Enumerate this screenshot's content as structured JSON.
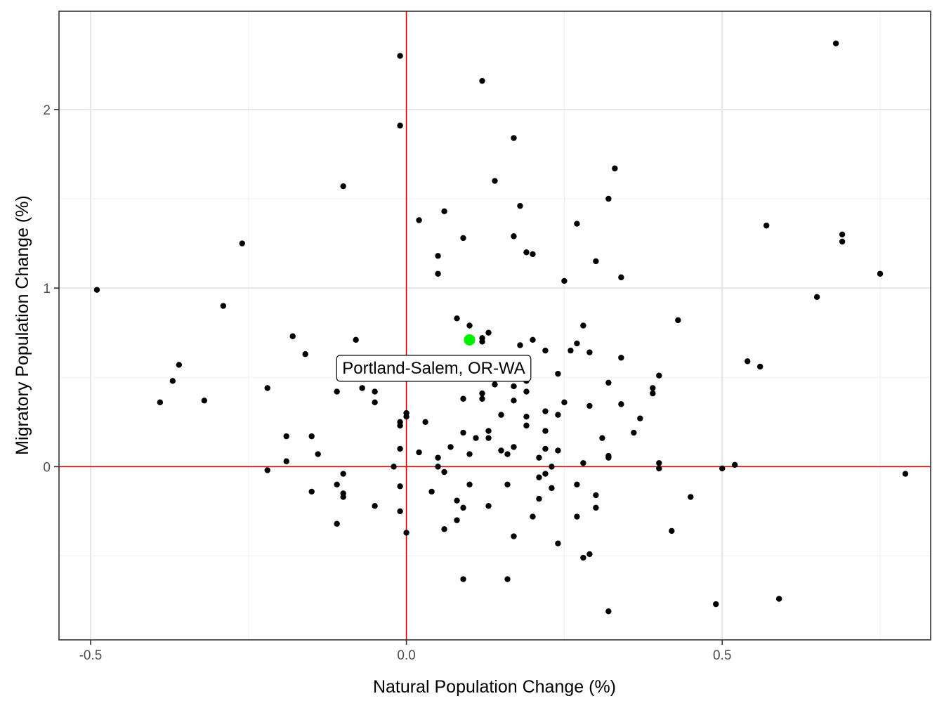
{
  "chart_data": {
    "type": "scatter",
    "title": "",
    "xlabel": "Natural Population Change (%)",
    "ylabel": "Migratory Population Change (%)",
    "xlim": [
      -0.55,
      0.83
    ],
    "ylim": [
      -0.97,
      2.55
    ],
    "x_ticks": [
      -0.5,
      0.0,
      0.5
    ],
    "x_tick_labels": [
      "-0.5",
      "0.0",
      "0.5"
    ],
    "y_ticks": [
      0,
      1,
      2
    ],
    "y_tick_labels": [
      "0",
      "1",
      "2"
    ],
    "x_minor_ticks": [
      -0.25,
      0.25,
      0.75
    ],
    "y_minor_ticks": [
      -0.5,
      0.5,
      1.5
    ],
    "reference_lines": {
      "x": 0,
      "y": 0,
      "color": "#dd0000"
    },
    "highlight": {
      "label": "Portland-Salem, OR-WA",
      "x": 0.1,
      "y": 0.71,
      "color": "#00ee00"
    },
    "grid": true,
    "points": [
      [
        -0.49,
        0.99
      ],
      [
        -0.39,
        0.36
      ],
      [
        -0.37,
        0.48
      ],
      [
        -0.36,
        0.57
      ],
      [
        -0.32,
        0.37
      ],
      [
        -0.29,
        0.9
      ],
      [
        -0.26,
        1.25
      ],
      [
        -0.22,
        0.44
      ],
      [
        -0.22,
        -0.02
      ],
      [
        -0.19,
        0.17
      ],
      [
        -0.19,
        0.03
      ],
      [
        -0.18,
        0.73
      ],
      [
        -0.16,
        0.63
      ],
      [
        -0.15,
        0.17
      ],
      [
        -0.15,
        -0.14
      ],
      [
        -0.14,
        0.07
      ],
      [
        -0.11,
        0.42
      ],
      [
        -0.11,
        -0.1
      ],
      [
        -0.11,
        -0.32
      ],
      [
        -0.1,
        1.57
      ],
      [
        -0.1,
        -0.04
      ],
      [
        -0.1,
        -0.15
      ],
      [
        -0.1,
        -0.17
      ],
      [
        -0.08,
        0.71
      ],
      [
        -0.07,
        0.44
      ],
      [
        -0.05,
        0.42
      ],
      [
        -0.05,
        0.36
      ],
      [
        -0.05,
        -0.22
      ],
      [
        -0.02,
        0.0
      ],
      [
        -0.01,
        2.3
      ],
      [
        -0.01,
        1.91
      ],
      [
        -0.01,
        0.25
      ],
      [
        -0.01,
        0.23
      ],
      [
        -0.01,
        0.1
      ],
      [
        -0.01,
        -0.11
      ],
      [
        -0.01,
        -0.25
      ],
      [
        0.0,
        0.3
      ],
      [
        0.0,
        0.28
      ],
      [
        0.0,
        -0.37
      ],
      [
        0.02,
        1.38
      ],
      [
        0.02,
        0.08
      ],
      [
        0.03,
        0.25
      ],
      [
        0.04,
        -0.14
      ],
      [
        0.05,
        1.18
      ],
      [
        0.05,
        1.08
      ],
      [
        0.05,
        0.05
      ],
      [
        0.05,
        0.0
      ],
      [
        0.06,
        1.43
      ],
      [
        0.06,
        -0.03
      ],
      [
        0.06,
        -0.35
      ],
      [
        0.07,
        0.11
      ],
      [
        0.08,
        0.83
      ],
      [
        0.08,
        -0.19
      ],
      [
        0.08,
        -0.3
      ],
      [
        0.09,
        1.28
      ],
      [
        0.09,
        0.38
      ],
      [
        0.09,
        0.19
      ],
      [
        0.09,
        -0.23
      ],
      [
        0.09,
        -0.63
      ],
      [
        0.1,
        0.79
      ],
      [
        0.1,
        0.07
      ],
      [
        0.1,
        -0.1
      ],
      [
        0.11,
        0.16
      ],
      [
        0.12,
        2.16
      ],
      [
        0.12,
        0.72
      ],
      [
        0.12,
        0.7
      ],
      [
        0.12,
        0.41
      ],
      [
        0.12,
        0.38
      ],
      [
        0.13,
        0.75
      ],
      [
        0.13,
        0.2
      ],
      [
        0.13,
        0.16
      ],
      [
        0.13,
        -0.22
      ],
      [
        0.14,
        1.6
      ],
      [
        0.14,
        0.46
      ],
      [
        0.15,
        0.29
      ],
      [
        0.15,
        0.09
      ],
      [
        0.16,
        0.07
      ],
      [
        0.16,
        -0.1
      ],
      [
        0.16,
        -0.63
      ],
      [
        0.17,
        1.84
      ],
      [
        0.17,
        1.29
      ],
      [
        0.17,
        0.45
      ],
      [
        0.17,
        0.37
      ],
      [
        0.17,
        0.11
      ],
      [
        0.17,
        -0.39
      ],
      [
        0.18,
        1.46
      ],
      [
        0.18,
        0.68
      ],
      [
        0.19,
        1.2
      ],
      [
        0.19,
        0.48
      ],
      [
        0.19,
        0.42
      ],
      [
        0.19,
        0.28
      ],
      [
        0.19,
        0.23
      ],
      [
        0.2,
        1.19
      ],
      [
        0.2,
        0.71
      ],
      [
        0.2,
        -0.28
      ],
      [
        0.21,
        0.05
      ],
      [
        0.21,
        -0.06
      ],
      [
        0.21,
        -0.18
      ],
      [
        0.22,
        0.65
      ],
      [
        0.22,
        0.31
      ],
      [
        0.22,
        0.2
      ],
      [
        0.22,
        0.1
      ],
      [
        0.22,
        -0.04
      ],
      [
        0.23,
        0.0
      ],
      [
        0.23,
        -0.12
      ],
      [
        0.24,
        0.52
      ],
      [
        0.24,
        0.29
      ],
      [
        0.24,
        0.09
      ],
      [
        0.24,
        -0.43
      ],
      [
        0.25,
        1.04
      ],
      [
        0.25,
        0.36
      ],
      [
        0.26,
        0.65
      ],
      [
        0.27,
        1.36
      ],
      [
        0.27,
        0.69
      ],
      [
        0.27,
        -0.1
      ],
      [
        0.27,
        -0.28
      ],
      [
        0.28,
        0.79
      ],
      [
        0.28,
        0.02
      ],
      [
        0.28,
        -0.51
      ],
      [
        0.29,
        0.64
      ],
      [
        0.29,
        0.34
      ],
      [
        0.29,
        -0.49
      ],
      [
        0.3,
        1.15
      ],
      [
        0.3,
        -0.16
      ],
      [
        0.3,
        -0.23
      ],
      [
        0.31,
        0.16
      ],
      [
        0.32,
        1.5
      ],
      [
        0.32,
        0.47
      ],
      [
        0.32,
        0.06
      ],
      [
        0.32,
        0.05
      ],
      [
        0.32,
        -0.81
      ],
      [
        0.33,
        1.67
      ],
      [
        0.34,
        1.06
      ],
      [
        0.34,
        0.61
      ],
      [
        0.34,
        0.35
      ],
      [
        0.36,
        0.19
      ],
      [
        0.37,
        0.27
      ],
      [
        0.39,
        0.44
      ],
      [
        0.39,
        0.41
      ],
      [
        0.4,
        0.51
      ],
      [
        0.4,
        0.02
      ],
      [
        0.4,
        -0.01
      ],
      [
        0.42,
        -0.36
      ],
      [
        0.43,
        0.82
      ],
      [
        0.45,
        -0.17
      ],
      [
        0.49,
        -0.77
      ],
      [
        0.5,
        -0.01
      ],
      [
        0.52,
        0.01
      ],
      [
        0.54,
        0.59
      ],
      [
        0.56,
        0.56
      ],
      [
        0.57,
        1.35
      ],
      [
        0.59,
        -0.74
      ],
      [
        0.65,
        0.95
      ],
      [
        0.68,
        2.37
      ],
      [
        0.69,
        1.3
      ],
      [
        0.69,
        1.26
      ],
      [
        0.75,
        1.08
      ],
      [
        0.79,
        -0.04
      ]
    ]
  }
}
